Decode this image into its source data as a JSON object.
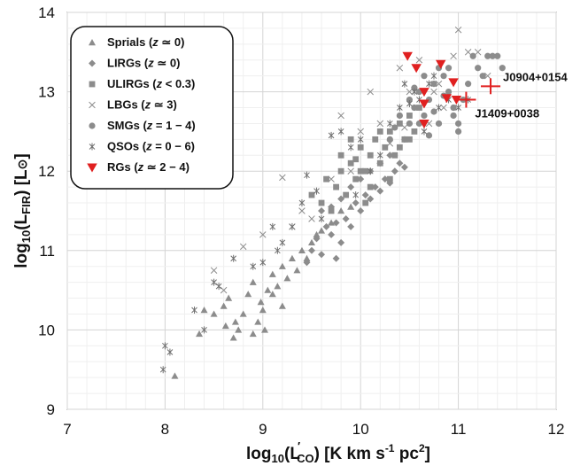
{
  "chart_data": {
    "type": "scatter",
    "xlim": [
      7,
      12
    ],
    "ylim": [
      9,
      14
    ],
    "x_ticks": [
      "7",
      "8",
      "9",
      "10",
      "11",
      "12"
    ],
    "y_ticks": [
      "9",
      "10",
      "11",
      "12",
      "13",
      "14"
    ],
    "grid": true,
    "legend_placement": "top-left",
    "xlabel": {
      "prefix": "log",
      "sub": "10",
      "open": "(L",
      "prime": "′",
      "sub2": "CO",
      "close": ")  [K km s",
      "exp1": "-1",
      "mid": " pc",
      "exp2": "2",
      "end": "]"
    },
    "ylabel": {
      "prefix": "log",
      "sub": "10",
      "open": "(L",
      "sub2": "FIR",
      "close": ")  [L",
      "sun": "⊙",
      "end": "]"
    },
    "series": [
      {
        "name": {
          "label": "Sprials (",
          "z": "z",
          "rest": " ≃ 0)"
        },
        "marker": "triangle",
        "color": "#8c8c8c",
        "points": [
          [
            8.1,
            9.42
          ],
          [
            8.35,
            9.95
          ],
          [
            8.4,
            10.25
          ],
          [
            8.5,
            10.2
          ],
          [
            8.6,
            10.3
          ],
          [
            8.62,
            10.05
          ],
          [
            8.7,
            9.9
          ],
          [
            8.72,
            10.1
          ],
          [
            8.8,
            10.2
          ],
          [
            8.85,
            10.45
          ],
          [
            8.9,
            10.6
          ],
          [
            8.95,
            10.1
          ],
          [
            8.98,
            10.35
          ],
          [
            9.0,
            10.25
          ],
          [
            9.05,
            10.5
          ],
          [
            9.1,
            10.7
          ],
          [
            9.1,
            10.45
          ],
          [
            9.15,
            10.55
          ],
          [
            9.2,
            10.8
          ],
          [
            9.25,
            10.65
          ],
          [
            9.3,
            10.9
          ],
          [
            9.35,
            10.75
          ],
          [
            9.4,
            11.0
          ],
          [
            9.45,
            10.9
          ],
          [
            9.5,
            11.1
          ],
          [
            9.55,
            11.2
          ],
          [
            9.6,
            11.25
          ],
          [
            9.7,
            11.35
          ],
          [
            9.8,
            11.5
          ],
          [
            9.9,
            11.55
          ],
          [
            8.75,
            10.0
          ],
          [
            8.65,
            10.4
          ],
          [
            9.02,
            10.0
          ],
          [
            8.9,
            9.95
          ],
          [
            9.2,
            10.3
          ]
        ]
      },
      {
        "name": {
          "label": "LIRGs (",
          "z": "z",
          "rest": " ≃ 0)"
        },
        "marker": "diamond",
        "color": "#8c8c8c",
        "points": [
          [
            9.5,
            11.0
          ],
          [
            9.55,
            11.15
          ],
          [
            9.6,
            10.95
          ],
          [
            9.65,
            11.3
          ],
          [
            9.7,
            11.2
          ],
          [
            9.75,
            11.35
          ],
          [
            9.8,
            11.1
          ],
          [
            9.85,
            11.4
          ],
          [
            9.9,
            11.3
          ],
          [
            9.95,
            11.6
          ],
          [
            10.0,
            11.5
          ],
          [
            10.05,
            11.7
          ],
          [
            10.1,
            11.65
          ],
          [
            10.15,
            11.8
          ],
          [
            10.2,
            11.75
          ],
          [
            10.25,
            11.9
          ],
          [
            10.3,
            11.85
          ],
          [
            10.35,
            12.0
          ],
          [
            10.4,
            12.1
          ],
          [
            10.45,
            12.05
          ],
          [
            9.6,
            11.5
          ],
          [
            9.7,
            11.55
          ],
          [
            9.8,
            11.65
          ],
          [
            9.9,
            11.8
          ],
          [
            10.0,
            11.9
          ],
          [
            10.1,
            12.0
          ],
          [
            10.2,
            12.1
          ],
          [
            10.3,
            12.2
          ],
          [
            9.45,
            10.85
          ],
          [
            9.75,
            10.9
          ]
        ]
      },
      {
        "name": {
          "label": "ULIRGs (",
          "z": "z",
          "rest": " < 0.3)"
        },
        "marker": "square",
        "color": "#8c8c8c",
        "points": [
          [
            9.7,
            11.5
          ],
          [
            9.75,
            11.8
          ],
          [
            9.8,
            12.0
          ],
          [
            9.85,
            11.7
          ],
          [
            9.9,
            12.1
          ],
          [
            9.95,
            11.9
          ],
          [
            10.0,
            12.3
          ],
          [
            10.05,
            12.0
          ],
          [
            10.1,
            12.2
          ],
          [
            10.15,
            12.4
          ],
          [
            10.2,
            12.1
          ],
          [
            10.25,
            12.3
          ],
          [
            10.3,
            12.5
          ],
          [
            10.35,
            12.2
          ],
          [
            10.4,
            12.6
          ],
          [
            10.45,
            12.4
          ],
          [
            10.5,
            12.7
          ],
          [
            10.55,
            12.5
          ],
          [
            10.6,
            12.8
          ],
          [
            9.6,
            11.6
          ],
          [
            9.65,
            11.9
          ],
          [
            9.9,
            12.4
          ],
          [
            10.0,
            12.0
          ],
          [
            10.1,
            11.8
          ],
          [
            10.2,
            12.5
          ],
          [
            10.3,
            11.9
          ],
          [
            10.4,
            12.3
          ],
          [
            9.5,
            11.7
          ],
          [
            9.8,
            12.2
          ],
          [
            10.5,
            12.4
          ],
          [
            10.05,
            11.6
          ],
          [
            9.95,
            12.15
          ]
        ]
      },
      {
        "name": {
          "label": "LBGs (",
          "z": "z",
          "rest": " ≃ 3)"
        },
        "marker": "x",
        "color": "#8c8c8c",
        "points": [
          [
            8.5,
            10.75
          ],
          [
            8.6,
            10.5
          ],
          [
            8.8,
            11.05
          ],
          [
            9.0,
            11.2
          ],
          [
            9.3,
            11.3
          ],
          [
            9.5,
            11.4
          ],
          [
            9.7,
            11.9
          ],
          [
            9.9,
            12.0
          ],
          [
            10.0,
            12.5
          ],
          [
            10.2,
            12.6
          ],
          [
            10.5,
            13.0
          ],
          [
            10.8,
            13.1
          ],
          [
            10.95,
            13.45
          ],
          [
            11.1,
            13.5
          ],
          [
            11.2,
            13.5
          ],
          [
            11.3,
            13.2
          ],
          [
            11.0,
            13.78
          ],
          [
            10.6,
            13.4
          ],
          [
            10.75,
            13.0
          ],
          [
            10.85,
            12.8
          ],
          [
            10.45,
            12.55
          ],
          [
            10.3,
            12.35
          ],
          [
            9.2,
            11.92
          ],
          [
            9.8,
            12.7
          ],
          [
            10.1,
            13.0
          ],
          [
            10.4,
            13.3
          ],
          [
            10.7,
            12.6
          ],
          [
            9.4,
            11.5
          ]
        ]
      },
      {
        "name": {
          "label": "SMGs (",
          "z": "z",
          "rest": " = 1 − 4)"
        },
        "marker": "circle",
        "color": "#8c8c8c",
        "points": [
          [
            10.3,
            12.4
          ],
          [
            10.4,
            12.7
          ],
          [
            10.5,
            12.9
          ],
          [
            10.55,
            12.8
          ],
          [
            10.6,
            13.0
          ],
          [
            10.65,
            13.2
          ],
          [
            10.7,
            12.9
          ],
          [
            10.75,
            13.1
          ],
          [
            10.8,
            13.3
          ],
          [
            10.85,
            13.2
          ],
          [
            10.9,
            13.0
          ],
          [
            10.95,
            12.8
          ],
          [
            11.0,
            12.5
          ],
          [
            11.05,
            12.9
          ],
          [
            11.1,
            13.1
          ],
          [
            11.2,
            13.3
          ],
          [
            11.3,
            13.45
          ],
          [
            11.4,
            13.45
          ],
          [
            11.45,
            13.3
          ],
          [
            11.0,
            12.6
          ],
          [
            10.7,
            12.45
          ],
          [
            10.6,
            12.6
          ],
          [
            10.5,
            12.6
          ],
          [
            10.45,
            12.4
          ],
          [
            10.65,
            12.7
          ],
          [
            10.95,
            12.7
          ],
          [
            11.15,
            13.45
          ],
          [
            10.8,
            12.6
          ],
          [
            10.85,
            12.95
          ],
          [
            11.25,
            13.2
          ],
          [
            10.55,
            13.05
          ],
          [
            10.75,
            12.75
          ],
          [
            11.35,
            13.45
          ],
          [
            10.35,
            12.55
          ],
          [
            10.9,
            13.3
          ]
        ]
      },
      {
        "name": {
          "label": "QSOs (",
          "z": "z",
          "rest": " = 0 − 6)"
        },
        "marker": "asterisk",
        "color": "#707070",
        "points": [
          [
            7.98,
            9.5
          ],
          [
            8.0,
            9.8
          ],
          [
            8.05,
            9.72
          ],
          [
            8.4,
            10.0
          ],
          [
            8.5,
            10.6
          ],
          [
            8.55,
            10.55
          ],
          [
            8.7,
            10.9
          ],
          [
            8.9,
            10.8
          ],
          [
            9.0,
            10.85
          ],
          [
            9.1,
            11.3
          ],
          [
            9.2,
            11.1
          ],
          [
            9.3,
            11.3
          ],
          [
            9.4,
            11.6
          ],
          [
            9.6,
            11.4
          ],
          [
            9.7,
            12.45
          ],
          [
            9.8,
            12.5
          ],
          [
            9.9,
            12.3
          ],
          [
            10.0,
            12.4
          ],
          [
            10.1,
            12.0
          ],
          [
            10.3,
            12.6
          ],
          [
            10.4,
            12.8
          ],
          [
            10.5,
            12.85
          ],
          [
            10.55,
            13.0
          ],
          [
            10.6,
            12.9
          ],
          [
            10.7,
            13.1
          ],
          [
            10.75,
            13.2
          ],
          [
            10.8,
            12.8
          ],
          [
            10.9,
            12.9
          ],
          [
            11.0,
            12.8
          ],
          [
            11.1,
            12.9
          ],
          [
            10.2,
            12.2
          ],
          [
            9.95,
            11.7
          ],
          [
            9.45,
            11.95
          ],
          [
            9.15,
            11.0
          ],
          [
            8.3,
            10.25
          ],
          [
            10.45,
            13.1
          ],
          [
            10.65,
            12.5
          ],
          [
            9.55,
            11.75
          ]
        ]
      },
      {
        "name": {
          "label": "RGs (",
          "z": "z",
          "rest": " ≃ 2 − 4)"
        },
        "marker": "triangle-down",
        "color": "#e02020",
        "points": [
          [
            10.48,
            13.45
          ],
          [
            10.57,
            13.3
          ],
          [
            10.65,
            13.0
          ],
          [
            10.65,
            12.85
          ],
          [
            10.65,
            12.6
          ],
          [
            10.82,
            13.35
          ],
          [
            10.88,
            12.92
          ],
          [
            10.95,
            13.12
          ],
          [
            10.98,
            12.9
          ]
        ]
      }
    ],
    "annotations": [
      {
        "label": "J0904+0154",
        "x": 11.33,
        "y": 13.07,
        "xerr": 0.1,
        "yerr": 0.1,
        "color": "#e02020"
      },
      {
        "label": "J1409+0038",
        "x": 11.08,
        "y": 12.9,
        "xerr": 0.1,
        "yerr": 0.1,
        "color": "#e02020"
      }
    ]
  }
}
